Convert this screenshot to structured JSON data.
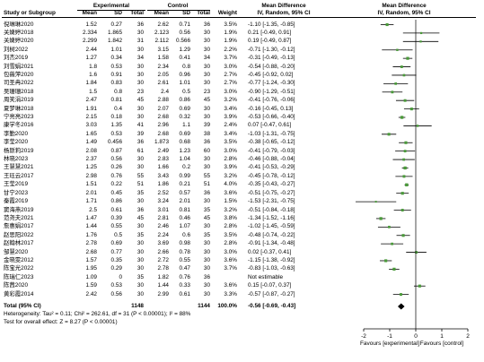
{
  "chart_data": {
    "type": "forest",
    "columns": {
      "study": "Study or Subgroup",
      "group1": "Experimental",
      "group2": "Control",
      "mean": "Mean",
      "sd": "SD",
      "total": "Total",
      "weight": "Weight",
      "effect_header": "Mean Difference",
      "effect_subheader": "IV, Random, 95% CI"
    },
    "studies": [
      {
        "name": "倪琳琳2020",
        "m1": "1.52",
        "sd1": "0.27",
        "n1": "36",
        "m2": "2.62",
        "sd2": "0.71",
        "n2": "36",
        "weight": "3.5%",
        "ci": "-1.10 [-1.35, -0.85]",
        "md": -1.1,
        "lo": -1.35,
        "hi": -0.85,
        "w": 3.5
      },
      {
        "name": "关婕婷2018",
        "m1": "2.334",
        "sd1": "1.865",
        "n1": "30",
        "m2": "2.123",
        "sd2": "0.56",
        "n2": "30",
        "weight": "1.9%",
        "ci": "0.21 [-0.49, 0.91]",
        "md": 0.21,
        "lo": -0.49,
        "hi": 0.91,
        "w": 1.9
      },
      {
        "name": "关婕婷2020",
        "m1": "2.299",
        "sd1": "1.842",
        "n1": "31",
        "m2": "2.112",
        "sd2": "0.566",
        "n2": "30",
        "weight": "1.9%",
        "ci": "0.19 [-0.49, 0.87]",
        "md": 0.19,
        "lo": -0.49,
        "hi": 0.87,
        "w": 1.9
      },
      {
        "name": "刘树2022",
        "m1": "2.44",
        "sd1": "1.01",
        "n1": "30",
        "m2": "3.15",
        "sd2": "1.29",
        "n2": "30",
        "weight": "2.2%",
        "ci": "-0.71 [-1.30, -0.12]",
        "md": -0.71,
        "lo": -1.3,
        "hi": -0.12,
        "w": 2.2
      },
      {
        "name": "刘杰2019",
        "m1": "1.27",
        "sd1": "0.34",
        "n1": "34",
        "m2": "1.58",
        "sd2": "0.41",
        "n2": "34",
        "weight": "3.7%",
        "ci": "-0.31 [-0.49, -0.13]",
        "md": -0.31,
        "lo": -0.49,
        "hi": -0.13,
        "w": 3.7
      },
      {
        "name": "刘雪娟2021",
        "m1": "1.8",
        "sd1": "0.53",
        "n1": "30",
        "m2": "2.34",
        "sd2": "0.8",
        "n2": "30",
        "weight": "3.0%",
        "ci": "-0.54 [-0.88, -0.20]",
        "md": -0.54,
        "lo": -0.88,
        "hi": -0.2,
        "w": 3.0
      },
      {
        "name": "包薇萍2020",
        "m1": "1.6",
        "sd1": "0.91",
        "n1": "30",
        "m2": "2.05",
        "sd2": "0.96",
        "n2": "30",
        "weight": "2.7%",
        "ci": "-0.45 [-0.92, 0.02]",
        "md": -0.45,
        "lo": -0.92,
        "hi": 0.02,
        "w": 2.7
      },
      {
        "name": "司圣冉2022",
        "m1": "1.84",
        "sd1": "0.83",
        "n1": "30",
        "m2": "2.61",
        "sd2": "1.01",
        "n2": "30",
        "weight": "2.7%",
        "ci": "-0.77 [-1.24, -0.30]",
        "md": -0.77,
        "lo": -1.24,
        "hi": -0.3,
        "w": 2.7
      },
      {
        "name": "吴珊珊2018",
        "m1": "1.5",
        "sd1": "0.8",
        "n1": "23",
        "m2": "2.4",
        "sd2": "0.5",
        "n2": "23",
        "weight": "3.0%",
        "ci": "-0.90 [-1.29, -0.51]",
        "md": -0.9,
        "lo": -1.29,
        "hi": -0.51,
        "w": 3.0
      },
      {
        "name": "周笑涓2019",
        "m1": "2.47",
        "sd1": "0.81",
        "n1": "45",
        "m2": "2.88",
        "sd2": "0.86",
        "n2": "45",
        "weight": "3.2%",
        "ci": "-0.41 [-0.76, -0.06]",
        "md": -0.41,
        "lo": -0.76,
        "hi": -0.06,
        "w": 3.2
      },
      {
        "name": "夏梦琳2018",
        "m1": "1.91",
        "sd1": "0.4",
        "n1": "30",
        "m2": "2.07",
        "sd2": "0.69",
        "n2": "30",
        "weight": "3.4%",
        "ci": "-0.16 [-0.45, 0.13]",
        "md": -0.16,
        "lo": -0.45,
        "hi": 0.13,
        "w": 3.4
      },
      {
        "name": "宁亮亮2023",
        "m1": "2.15",
        "sd1": "0.18",
        "n1": "30",
        "m2": "2.68",
        "sd2": "0.32",
        "n2": "30",
        "weight": "3.9%",
        "ci": "-0.53 [-0.66, -0.40]",
        "md": -0.53,
        "lo": -0.66,
        "hi": -0.4,
        "w": 3.9
      },
      {
        "name": "康学冬2016",
        "m1": "3.03",
        "sd1": "1.35",
        "n1": "41",
        "m2": "2.96",
        "sd2": "1.1",
        "n2": "39",
        "weight": "2.4%",
        "ci": "0.07 [-0.47, 0.61]",
        "md": 0.07,
        "lo": -0.47,
        "hi": 0.61,
        "w": 2.4
      },
      {
        "name": "李勤2020",
        "m1": "1.65",
        "sd1": "0.53",
        "n1": "39",
        "m2": "2.68",
        "sd2": "0.69",
        "n2": "38",
        "weight": "3.4%",
        "ci": "-1.03 [-1.31, -0.75]",
        "md": -1.03,
        "lo": -1.31,
        "hi": -0.75,
        "w": 3.4
      },
      {
        "name": "李莹2020",
        "m1": "1.49",
        "sd1": "0.456",
        "n1": "36",
        "m2": "1.873",
        "sd2": "0.68",
        "n2": "36",
        "weight": "3.5%",
        "ci": "-0.38 [-0.65, -0.12]",
        "md": -0.38,
        "lo": -0.65,
        "hi": -0.12,
        "w": 3.5
      },
      {
        "name": "杨斯莉2019",
        "m1": "2.08",
        "sd1": "0.87",
        "n1": "61",
        "m2": "2.49",
        "sd2": "1.23",
        "n2": "60",
        "weight": "3.0%",
        "ci": "-0.41 [-0.79, -0.03]",
        "md": -0.41,
        "lo": -0.79,
        "hi": -0.03,
        "w": 3.0
      },
      {
        "name": "林晓2023",
        "m1": "2.37",
        "sd1": "0.56",
        "n1": "30",
        "m2": "2.83",
        "sd2": "1.04",
        "n2": "30",
        "weight": "2.8%",
        "ci": "-0.46 [-0.88, -0.04]",
        "md": -0.46,
        "lo": -0.88,
        "hi": -0.04,
        "w": 2.8
      },
      {
        "name": "王慧慧2021",
        "m1": "1.25",
        "sd1": "0.26",
        "n1": "30",
        "m2": "1.66",
        "sd2": "0.2",
        "n2": "30",
        "weight": "3.9%",
        "ci": "-0.41 [-0.53, -0.29]",
        "md": -0.41,
        "lo": -0.53,
        "hi": -0.29,
        "w": 3.9
      },
      {
        "name": "王珏云2017",
        "m1": "2.98",
        "sd1": "0.76",
        "n1": "55",
        "m2": "3.43",
        "sd2": "0.99",
        "n2": "55",
        "weight": "3.2%",
        "ci": "-0.45 [-0.78, -0.12]",
        "md": -0.45,
        "lo": -0.78,
        "hi": -0.12,
        "w": 3.2
      },
      {
        "name": "王莹2019",
        "m1": "1.51",
        "sd1": "0.22",
        "n1": "51",
        "m2": "1.86",
        "sd2": "0.21",
        "n2": "51",
        "weight": "4.0%",
        "ci": "-0.35 [-0.43, -0.27]",
        "md": -0.35,
        "lo": -0.43,
        "hi": -0.27,
        "w": 4.0
      },
      {
        "name": "甘宁2023",
        "m1": "2.01",
        "sd1": "0.45",
        "n1": "35",
        "m2": "2.52",
        "sd2": "0.57",
        "n2": "36",
        "weight": "3.6%",
        "ci": "-0.51 [-0.75, -0.27]",
        "md": -0.51,
        "lo": -0.75,
        "hi": -0.27,
        "w": 3.6
      },
      {
        "name": "秦霞2019",
        "m1": "1.71",
        "sd1": "0.86",
        "n1": "30",
        "m2": "3.24",
        "sd2": "2.01",
        "n2": "30",
        "weight": "1.5%",
        "ci": "-1.53 [-2.31, -0.75]",
        "md": -1.53,
        "lo": -2.31,
        "hi": -0.75,
        "w": 1.5
      },
      {
        "name": "窦海燕2019",
        "m1": "2.5",
        "sd1": "0.61",
        "n1": "36",
        "m2": "3.01",
        "sd2": "0.81",
        "n2": "35",
        "weight": "3.2%",
        "ci": "-0.51 [-0.84, -0.18]",
        "md": -0.51,
        "lo": -0.84,
        "hi": -0.18,
        "w": 3.2
      },
      {
        "name": "范尧夫2021",
        "m1": "1.47",
        "sd1": "0.39",
        "n1": "45",
        "m2": "2.81",
        "sd2": "0.46",
        "n2": "45",
        "weight": "3.8%",
        "ci": "-1.34 [-1.52, -1.16]",
        "md": -1.34,
        "lo": -1.52,
        "hi": -1.16,
        "w": 3.8
      },
      {
        "name": "詹惠娟2017",
        "m1": "1.44",
        "sd1": "0.55",
        "n1": "30",
        "m2": "2.46",
        "sd2": "1.07",
        "n2": "30",
        "weight": "2.8%",
        "ci": "-1.02 [-1.45, -0.59]",
        "md": -1.02,
        "lo": -1.45,
        "hi": -0.59,
        "w": 2.8
      },
      {
        "name": "赵思阳2022",
        "m1": "1.76",
        "sd1": "0.5",
        "n1": "35",
        "m2": "2.24",
        "sd2": "0.6",
        "n2": "35",
        "weight": "3.5%",
        "ci": "-0.48 [-0.74, -0.22]",
        "md": -0.48,
        "lo": -0.74,
        "hi": -0.22,
        "w": 3.5
      },
      {
        "name": "赵翰林2017",
        "m1": "2.78",
        "sd1": "0.69",
        "n1": "30",
        "m2": "3.69",
        "sd2": "0.98",
        "n2": "30",
        "weight": "2.8%",
        "ci": "-0.91 [-1.34, -0.48]",
        "md": -0.91,
        "lo": -1.34,
        "hi": -0.48,
        "w": 2.8
      },
      {
        "name": "邹慧2020",
        "m1": "2.68",
        "sd1": "0.77",
        "n1": "30",
        "m2": "2.66",
        "sd2": "0.78",
        "n2": "30",
        "weight": "3.0%",
        "ci": "0.02 [-0.37, 0.41]",
        "md": 0.02,
        "lo": -0.37,
        "hi": 0.41,
        "w": 3.0
      },
      {
        "name": "金晓雯2012",
        "m1": "1.57",
        "sd1": "0.35",
        "n1": "30",
        "m2": "2.72",
        "sd2": "0.55",
        "n2": "30",
        "weight": "3.6%",
        "ci": "-1.15 [-1.38, -0.92]",
        "md": -1.15,
        "lo": -1.38,
        "hi": -0.92,
        "w": 3.6
      },
      {
        "name": "陈宝光2022",
        "m1": "1.95",
        "sd1": "0.29",
        "n1": "30",
        "m2": "2.78",
        "sd2": "0.47",
        "n2": "30",
        "weight": "3.7%",
        "ci": "-0.83 [-1.03, -0.63]",
        "md": -0.83,
        "lo": -1.03,
        "hi": -0.63,
        "w": 3.7
      },
      {
        "name": "陈瑞仁2023",
        "m1": "1.09",
        "sd1": "0",
        "n1": "35",
        "m2": "1.82",
        "sd2": "0.76",
        "n2": "36",
        "weight": "",
        "ci": "Not estimable",
        "md": null,
        "lo": null,
        "hi": null,
        "w": 0
      },
      {
        "name": "陈茜2020",
        "m1": "1.59",
        "sd1": "0.53",
        "n1": "30",
        "m2": "1.44",
        "sd2": "0.33",
        "n2": "30",
        "weight": "3.6%",
        "ci": "0.15 [-0.07, 0.37]",
        "md": 0.15,
        "lo": -0.07,
        "hi": 0.37,
        "w": 3.6
      },
      {
        "name": "黄彩霞2014",
        "m1": "2.42",
        "sd1": "0.56",
        "n1": "30",
        "m2": "2.99",
        "sd2": "0.61",
        "n2": "30",
        "weight": "3.3%",
        "ci": "-0.57 [-0.87, -0.27]",
        "md": -0.57,
        "lo": -0.87,
        "hi": -0.27,
        "w": 3.3
      }
    ],
    "total": {
      "label": "Total (95% CI)",
      "n1": "1148",
      "n2": "1144",
      "weight": "100.0%",
      "ci": "-0.56 [-0.69, -0.43]",
      "md": -0.56,
      "lo": -0.69,
      "hi": -0.43
    },
    "heterogeneity": "Heterogeneity: Tau² = 0.11; Chi² = 262.61, df = 31 (P < 0.00001); I² = 88%",
    "overall_effect": "Test for overall effect: Z = 8.27 (P < 0.00001)",
    "xaxis": {
      "ticks": [
        -2,
        -1,
        0,
        1,
        2
      ],
      "tick_labels": [
        "-2",
        "-1",
        "0",
        "1",
        "2"
      ],
      "xlim": [
        -2,
        2
      ],
      "left_label": "Favours [experimental]",
      "right_label": "Favours [control]"
    },
    "colors": {
      "square": "#4a9a3a",
      "line": "#000000"
    }
  }
}
